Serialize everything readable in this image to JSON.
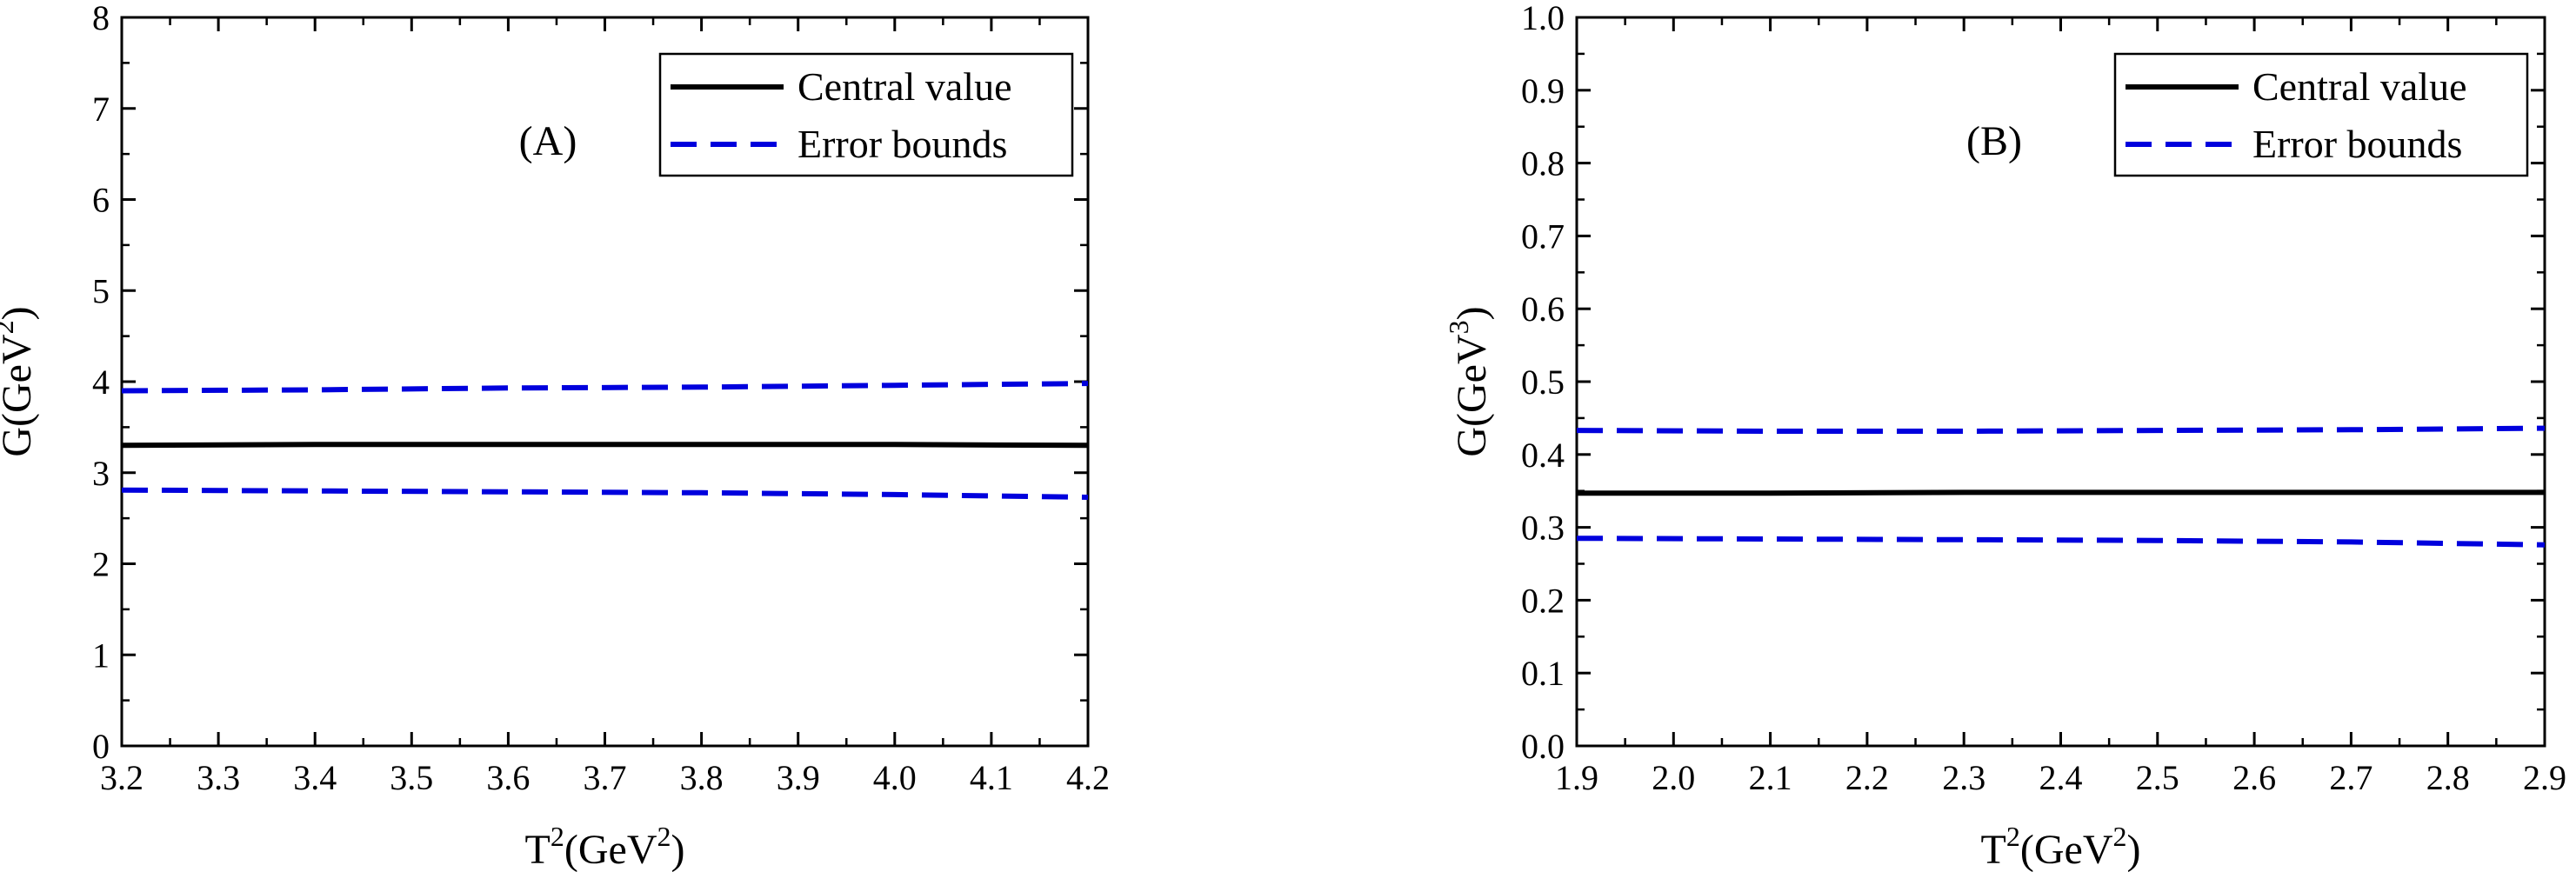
{
  "chart_data": [
    {
      "type": "line",
      "panel_label": "(A)",
      "xlabel": {
        "base": "T",
        "base_sup": "2",
        "paren": "(GeV",
        "paren_sup": "2",
        "close": ")"
      },
      "ylabel": {
        "base": "G(GeV",
        "sup": "2",
        "close": ")"
      },
      "xlim": [
        3.2,
        4.2
      ],
      "ylim": [
        0,
        8
      ],
      "x_ticks": [
        "3.2",
        "3.3",
        "3.4",
        "3.5",
        "3.6",
        "3.7",
        "3.8",
        "3.9",
        "4.0",
        "4.1",
        "4.2"
      ],
      "y_ticks": [
        "0",
        "1",
        "2",
        "3",
        "4",
        "5",
        "6",
        "7",
        "8"
      ],
      "legend_position": "top-right",
      "grid": false,
      "series": [
        {
          "name": "Central value",
          "style": "solid",
          "color": "#000000",
          "x": [
            3.2,
            3.4,
            3.6,
            3.8,
            4.0,
            4.2
          ],
          "y": [
            3.3,
            3.31,
            3.31,
            3.31,
            3.31,
            3.3
          ]
        },
        {
          "name": "Error bounds",
          "style": "dashed",
          "color": "#0000dd",
          "x": [
            3.2,
            3.4,
            3.6,
            3.8,
            4.0,
            4.2
          ],
          "y": [
            3.9,
            3.91,
            3.93,
            3.94,
            3.96,
            3.98
          ]
        },
        {
          "name": "",
          "style": "dashed",
          "color": "#0000dd",
          "x": [
            3.2,
            3.4,
            3.6,
            3.8,
            4.0,
            4.2
          ],
          "y": [
            2.81,
            2.8,
            2.79,
            2.78,
            2.76,
            2.73
          ]
        }
      ]
    },
    {
      "type": "line",
      "panel_label": "(B)",
      "xlabel": {
        "base": "T",
        "base_sup": "2",
        "paren": "(GeV",
        "paren_sup": "2",
        "close": ")"
      },
      "ylabel": {
        "base": "G(GeV",
        "sup": "3",
        "close": ")"
      },
      "xlim": [
        1.9,
        2.9
      ],
      "ylim": [
        0,
        1.0
      ],
      "x_ticks": [
        "1.9",
        "2.0",
        "2.1",
        "2.2",
        "2.3",
        "2.4",
        "2.5",
        "2.6",
        "2.7",
        "2.8",
        "2.9"
      ],
      "y_ticks": [
        "0.0",
        "0.1",
        "0.2",
        "0.3",
        "0.4",
        "0.5",
        "0.6",
        "0.7",
        "0.8",
        "0.9",
        "1.0"
      ],
      "legend_position": "top-right",
      "grid": false,
      "series": [
        {
          "name": "Central value",
          "style": "solid",
          "color": "#000000",
          "x": [
            1.9,
            2.1,
            2.3,
            2.5,
            2.7,
            2.9
          ],
          "y": [
            0.347,
            0.347,
            0.348,
            0.348,
            0.348,
            0.348
          ]
        },
        {
          "name": "Error bounds",
          "style": "dashed",
          "color": "#0000dd",
          "x": [
            1.9,
            2.1,
            2.3,
            2.5,
            2.7,
            2.9
          ],
          "y": [
            0.433,
            0.432,
            0.432,
            0.433,
            0.434,
            0.436
          ]
        },
        {
          "name": "",
          "style": "dashed",
          "color": "#0000dd",
          "x": [
            1.9,
            2.1,
            2.3,
            2.5,
            2.7,
            2.9
          ],
          "y": [
            0.285,
            0.284,
            0.283,
            0.282,
            0.28,
            0.276
          ]
        }
      ]
    }
  ]
}
